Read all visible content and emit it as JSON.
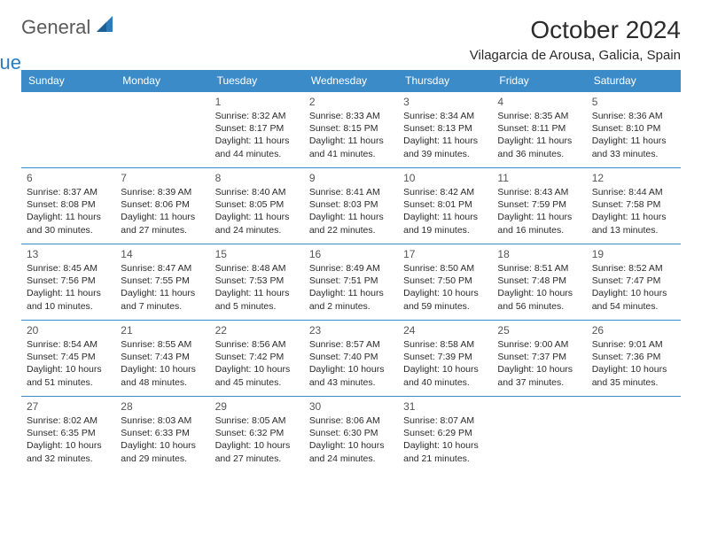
{
  "brand": {
    "word1": "General",
    "word2": "Blue",
    "word1_color": "#5a5a5a",
    "word2_color": "#2b7bbf",
    "sail_color": "#2b7bbf"
  },
  "title": "October 2024",
  "location": "Vilagarcia de Arousa, Galicia, Spain",
  "day_headers": [
    "Sunday",
    "Monday",
    "Tuesday",
    "Wednesday",
    "Thursday",
    "Friday",
    "Saturday"
  ],
  "header_bg_color": "#3b8bc9",
  "header_text_color": "#ffffff",
  "cell_border_color": "#3b8bc9",
  "text_color": "#2b2b2b",
  "daynum_color": "#555555",
  "fonts": {
    "title_size_pt": 21,
    "location_size_pt": 11,
    "header_size_pt": 9,
    "daynum_size_pt": 9,
    "info_size_pt": 8
  },
  "weeks": [
    [
      null,
      null,
      {
        "n": "1",
        "sunrise": "Sunrise: 8:32 AM",
        "sunset": "Sunset: 8:17 PM",
        "daylight": "Daylight: 11 hours and 44 minutes."
      },
      {
        "n": "2",
        "sunrise": "Sunrise: 8:33 AM",
        "sunset": "Sunset: 8:15 PM",
        "daylight": "Daylight: 11 hours and 41 minutes."
      },
      {
        "n": "3",
        "sunrise": "Sunrise: 8:34 AM",
        "sunset": "Sunset: 8:13 PM",
        "daylight": "Daylight: 11 hours and 39 minutes."
      },
      {
        "n": "4",
        "sunrise": "Sunrise: 8:35 AM",
        "sunset": "Sunset: 8:11 PM",
        "daylight": "Daylight: 11 hours and 36 minutes."
      },
      {
        "n": "5",
        "sunrise": "Sunrise: 8:36 AM",
        "sunset": "Sunset: 8:10 PM",
        "daylight": "Daylight: 11 hours and 33 minutes."
      }
    ],
    [
      {
        "n": "6",
        "sunrise": "Sunrise: 8:37 AM",
        "sunset": "Sunset: 8:08 PM",
        "daylight": "Daylight: 11 hours and 30 minutes."
      },
      {
        "n": "7",
        "sunrise": "Sunrise: 8:39 AM",
        "sunset": "Sunset: 8:06 PM",
        "daylight": "Daylight: 11 hours and 27 minutes."
      },
      {
        "n": "8",
        "sunrise": "Sunrise: 8:40 AM",
        "sunset": "Sunset: 8:05 PM",
        "daylight": "Daylight: 11 hours and 24 minutes."
      },
      {
        "n": "9",
        "sunrise": "Sunrise: 8:41 AM",
        "sunset": "Sunset: 8:03 PM",
        "daylight": "Daylight: 11 hours and 22 minutes."
      },
      {
        "n": "10",
        "sunrise": "Sunrise: 8:42 AM",
        "sunset": "Sunset: 8:01 PM",
        "daylight": "Daylight: 11 hours and 19 minutes."
      },
      {
        "n": "11",
        "sunrise": "Sunrise: 8:43 AM",
        "sunset": "Sunset: 7:59 PM",
        "daylight": "Daylight: 11 hours and 16 minutes."
      },
      {
        "n": "12",
        "sunrise": "Sunrise: 8:44 AM",
        "sunset": "Sunset: 7:58 PM",
        "daylight": "Daylight: 11 hours and 13 minutes."
      }
    ],
    [
      {
        "n": "13",
        "sunrise": "Sunrise: 8:45 AM",
        "sunset": "Sunset: 7:56 PM",
        "daylight": "Daylight: 11 hours and 10 minutes."
      },
      {
        "n": "14",
        "sunrise": "Sunrise: 8:47 AM",
        "sunset": "Sunset: 7:55 PM",
        "daylight": "Daylight: 11 hours and 7 minutes."
      },
      {
        "n": "15",
        "sunrise": "Sunrise: 8:48 AM",
        "sunset": "Sunset: 7:53 PM",
        "daylight": "Daylight: 11 hours and 5 minutes."
      },
      {
        "n": "16",
        "sunrise": "Sunrise: 8:49 AM",
        "sunset": "Sunset: 7:51 PM",
        "daylight": "Daylight: 11 hours and 2 minutes."
      },
      {
        "n": "17",
        "sunrise": "Sunrise: 8:50 AM",
        "sunset": "Sunset: 7:50 PM",
        "daylight": "Daylight: 10 hours and 59 minutes."
      },
      {
        "n": "18",
        "sunrise": "Sunrise: 8:51 AM",
        "sunset": "Sunset: 7:48 PM",
        "daylight": "Daylight: 10 hours and 56 minutes."
      },
      {
        "n": "19",
        "sunrise": "Sunrise: 8:52 AM",
        "sunset": "Sunset: 7:47 PM",
        "daylight": "Daylight: 10 hours and 54 minutes."
      }
    ],
    [
      {
        "n": "20",
        "sunrise": "Sunrise: 8:54 AM",
        "sunset": "Sunset: 7:45 PM",
        "daylight": "Daylight: 10 hours and 51 minutes."
      },
      {
        "n": "21",
        "sunrise": "Sunrise: 8:55 AM",
        "sunset": "Sunset: 7:43 PM",
        "daylight": "Daylight: 10 hours and 48 minutes."
      },
      {
        "n": "22",
        "sunrise": "Sunrise: 8:56 AM",
        "sunset": "Sunset: 7:42 PM",
        "daylight": "Daylight: 10 hours and 45 minutes."
      },
      {
        "n": "23",
        "sunrise": "Sunrise: 8:57 AM",
        "sunset": "Sunset: 7:40 PM",
        "daylight": "Daylight: 10 hours and 43 minutes."
      },
      {
        "n": "24",
        "sunrise": "Sunrise: 8:58 AM",
        "sunset": "Sunset: 7:39 PM",
        "daylight": "Daylight: 10 hours and 40 minutes."
      },
      {
        "n": "25",
        "sunrise": "Sunrise: 9:00 AM",
        "sunset": "Sunset: 7:37 PM",
        "daylight": "Daylight: 10 hours and 37 minutes."
      },
      {
        "n": "26",
        "sunrise": "Sunrise: 9:01 AM",
        "sunset": "Sunset: 7:36 PM",
        "daylight": "Daylight: 10 hours and 35 minutes."
      }
    ],
    [
      {
        "n": "27",
        "sunrise": "Sunrise: 8:02 AM",
        "sunset": "Sunset: 6:35 PM",
        "daylight": "Daylight: 10 hours and 32 minutes."
      },
      {
        "n": "28",
        "sunrise": "Sunrise: 8:03 AM",
        "sunset": "Sunset: 6:33 PM",
        "daylight": "Daylight: 10 hours and 29 minutes."
      },
      {
        "n": "29",
        "sunrise": "Sunrise: 8:05 AM",
        "sunset": "Sunset: 6:32 PM",
        "daylight": "Daylight: 10 hours and 27 minutes."
      },
      {
        "n": "30",
        "sunrise": "Sunrise: 8:06 AM",
        "sunset": "Sunset: 6:30 PM",
        "daylight": "Daylight: 10 hours and 24 minutes."
      },
      {
        "n": "31",
        "sunrise": "Sunrise: 8:07 AM",
        "sunset": "Sunset: 6:29 PM",
        "daylight": "Daylight: 10 hours and 21 minutes."
      },
      null,
      null
    ]
  ]
}
